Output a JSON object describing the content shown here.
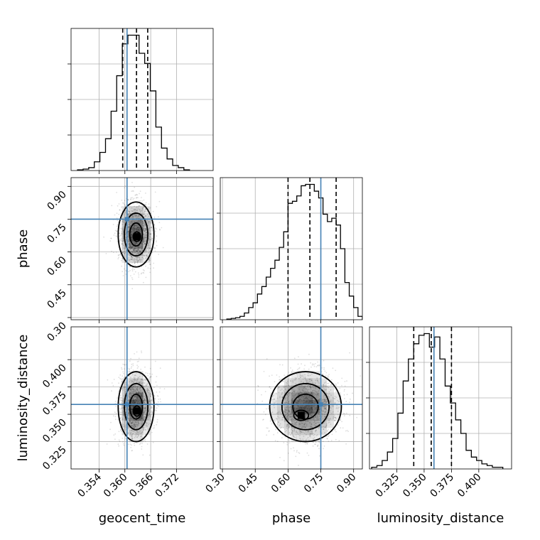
{
  "colors": {
    "truth": "#4682b4",
    "frame": "#000000",
    "grid": "#b0b0b0",
    "density": "#000000"
  },
  "chart_data": {
    "type": "corner",
    "parameters": [
      "geocent_time",
      "phase",
      "luminosity_distance"
    ],
    "truths": {
      "geocent_time": 0.3605,
      "phase": 0.75,
      "luminosity_distance": 0.359
    },
    "ranges": {
      "geocent_time": [
        0.3475,
        0.3805
      ],
      "phase": [
        0.29,
        0.94
      ],
      "luminosity_distance": [
        0.3,
        0.43
      ]
    },
    "ticks": {
      "geocent_time": [
        0.354,
        0.36,
        0.366,
        0.372
      ],
      "phase": [
        0.3,
        0.45,
        0.6,
        0.75,
        0.9
      ],
      "luminosity_distance": [
        0.325,
        0.35,
        0.375,
        0.4
      ]
    },
    "tick_labels": {
      "geocent_time": [
        "0.354",
        "0.360",
        "0.366",
        "0.372"
      ],
      "phase": [
        "0.30",
        "0.45",
        "0.60",
        "0.75",
        "0.90"
      ],
      "luminosity_distance": [
        "0.325",
        "0.350",
        "0.375",
        "0.400"
      ]
    },
    "marginals": {
      "geocent_time": {
        "quantiles": [
          0.3595,
          0.3627,
          0.3653
        ],
        "bin_edges": [
          0.349,
          0.3503,
          0.3516,
          0.3529,
          0.3542,
          0.3555,
          0.3568,
          0.3581,
          0.3594,
          0.3607,
          0.362,
          0.3633,
          0.3646,
          0.3659,
          0.3672,
          0.3685,
          0.3698,
          0.3711,
          0.3724,
          0.3737,
          0.375
        ],
        "counts": [
          1,
          2,
          4,
          12,
          25,
          44,
          82,
          131,
          175,
          187,
          187,
          162,
          148,
          110,
          60,
          31,
          16,
          7,
          4,
          1
        ]
      },
      "phase": {
        "quantiles": [
          0.6,
          0.7,
          0.82
        ],
        "bin_edges": [
          0.32,
          0.34,
          0.36,
          0.38,
          0.4,
          0.42,
          0.44,
          0.46,
          0.48,
          0.5,
          0.52,
          0.54,
          0.56,
          0.58,
          0.6,
          0.62,
          0.64,
          0.66,
          0.68,
          0.7,
          0.72,
          0.74,
          0.76,
          0.78,
          0.8,
          0.82,
          0.84,
          0.86,
          0.88,
          0.9,
          0.92,
          0.94
        ],
        "counts": [
          1,
          2,
          3,
          5,
          10,
          18,
          25,
          38,
          49,
          63,
          76,
          88,
          107,
          130,
          172,
          175,
          183,
          198,
          200,
          200,
          190,
          180,
          156,
          145,
          150,
          140,
          105,
          55,
          35,
          18,
          5
        ]
      },
      "luminosity_distance": {
        "quantiles": [
          0.3405,
          0.3565,
          0.375
        ],
        "bin_edges": [
          0.302,
          0.3068,
          0.3116,
          0.3164,
          0.3212,
          0.326,
          0.3308,
          0.3356,
          0.3404,
          0.3452,
          0.35,
          0.3548,
          0.3596,
          0.3644,
          0.3692,
          0.374,
          0.3788,
          0.3836,
          0.3884,
          0.3932,
          0.398,
          0.4028,
          0.4076,
          0.4124,
          0.4172,
          0.422
        ],
        "counts": [
          1,
          2,
          5,
          10,
          18,
          33,
          52,
          65,
          74,
          79,
          80,
          72,
          78,
          65,
          49,
          39,
          29,
          21,
          11,
          7,
          5,
          3,
          2,
          1,
          1
        ]
      }
    },
    "joint": [
      {
        "x": "geocent_time",
        "y": "phase",
        "mean": [
          0.3626,
          0.68
        ],
        "sd": [
          0.0019,
          0.072
        ],
        "mode": [
          0.3628,
          0.67
        ]
      },
      {
        "x": "geocent_time",
        "y": "luminosity_distance",
        "mean": [
          0.3626,
          0.357
        ],
        "sd": [
          0.0019,
          0.0155
        ],
        "mode": [
          0.3628,
          0.353
        ]
      },
      {
        "x": "phase",
        "y": "luminosity_distance",
        "mean": [
          0.68,
          0.357
        ],
        "sd": [
          0.075,
          0.0155
        ],
        "mode": [
          0.66,
          0.349
        ]
      }
    ],
    "axis_labels": {
      "x": [
        "geocent_time",
        "phase",
        "luminosity_distance"
      ],
      "y": [
        "phase",
        "luminosity_distance"
      ]
    },
    "grid": true
  }
}
